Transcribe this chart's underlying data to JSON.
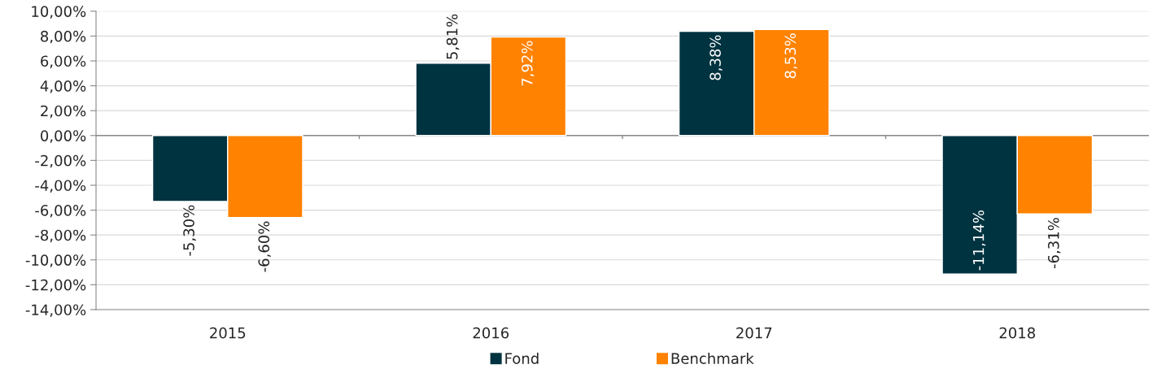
{
  "chart_data": {
    "type": "bar",
    "categories": [
      "2015",
      "2016",
      "2017",
      "2018"
    ],
    "series": [
      {
        "name": "Fond",
        "color": "#003340",
        "values": [
          -5.3,
          5.81,
          8.38,
          -11.14
        ],
        "value_labels": [
          "-5,30%",
          "5,81%",
          "8,38%",
          "-11,14%"
        ]
      },
      {
        "name": "Benchmark",
        "color": "#ff8200",
        "values": [
          -6.6,
          7.92,
          8.53,
          -6.31
        ],
        "value_labels": [
          "-6,60%",
          "7,92%",
          "8,53%",
          "-6,31%"
        ]
      }
    ],
    "ylim": [
      -14,
      10
    ],
    "yticks": [
      {
        "value": -14,
        "label": "-14,00%"
      },
      {
        "value": -12,
        "label": "-12,00%"
      },
      {
        "value": -10,
        "label": "-10,00%"
      },
      {
        "value": -8,
        "label": "-8,00%"
      },
      {
        "value": -6,
        "label": "-6,00%"
      },
      {
        "value": -4,
        "label": "-4,00%"
      },
      {
        "value": -2,
        "label": "-2,00%"
      },
      {
        "value": 0,
        "label": "0,00%"
      },
      {
        "value": 2,
        "label": "2,00%"
      },
      {
        "value": 4,
        "label": "4,00%"
      },
      {
        "value": 6,
        "label": "6,00%"
      },
      {
        "value": 8,
        "label": "8,00%"
      },
      {
        "value": 10,
        "label": "10,00%"
      }
    ],
    "grid": "y",
    "legend": "bottom"
  }
}
